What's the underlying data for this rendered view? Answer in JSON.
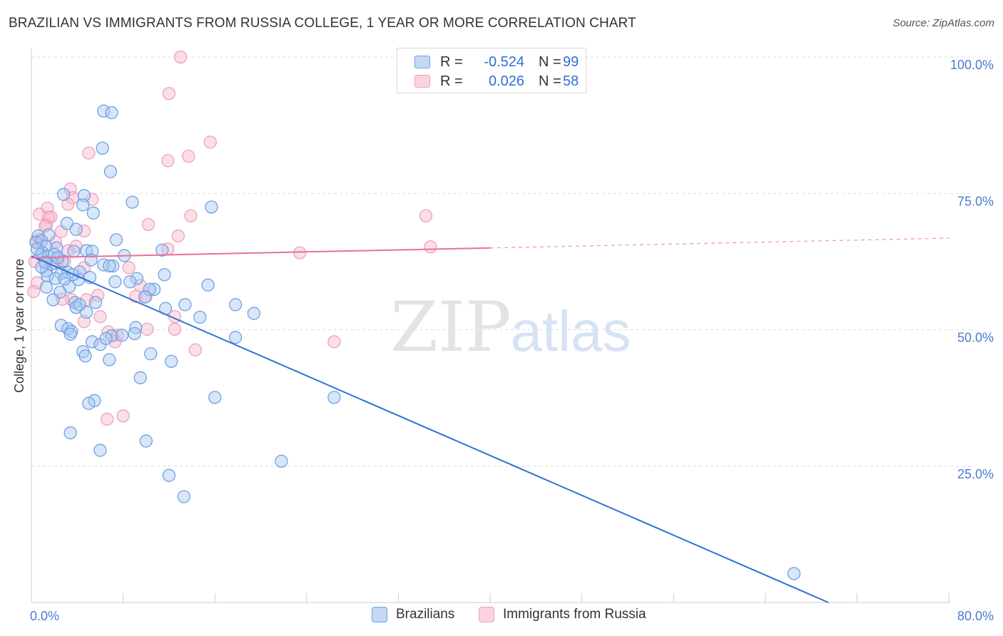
{
  "header": {
    "title": "BRAZILIAN VS IMMIGRANTS FROM RUSSIA COLLEGE, 1 YEAR OR MORE CORRELATION CHART",
    "source": "Source: ZipAtlas.com"
  },
  "legend": {
    "rows": [
      {
        "r_label": "R =",
        "r_value": "-0.524",
        "n_label": "N =",
        "n_value": "99",
        "color": "#6fa1e6"
      },
      {
        "r_label": "R =",
        "r_value": "0.026",
        "n_label": "N =",
        "n_value": "58",
        "color": "#f0a0bb"
      }
    ]
  },
  "bottom_legend": {
    "items": [
      {
        "label": "Brazilians",
        "color": "#6fa1e6"
      },
      {
        "label": "Immigrants from Russia",
        "color": "#f0a0bb"
      }
    ]
  },
  "watermark": {
    "zip": "ZIP",
    "atlas": "atlas"
  },
  "chart_data": {
    "type": "scatter",
    "title": "BRAZILIAN VS IMMIGRANTS FROM RUSSIA COLLEGE, 1 YEAR OR MORE CORRELATION CHART",
    "xlabel": "",
    "ylabel": "College, 1 year or more",
    "xlim": [
      0,
      80
    ],
    "ylim": [
      0,
      100
    ],
    "x_tick_labels": [
      "0.0%",
      "80.0%"
    ],
    "y_tick_labels": [
      {
        "value": 100,
        "label": "100.0%"
      },
      {
        "value": 75,
        "label": "75.0%"
      },
      {
        "value": 50,
        "label": "50.0%"
      },
      {
        "value": 25,
        "label": "25.0%"
      }
    ],
    "grid": true,
    "colors": {
      "brazilians": "#6fa1e6",
      "russia": "#f0a0bb",
      "brazilians_line": "#2f72d4",
      "russia_line": "#e8709a"
    },
    "series": [
      {
        "name": "Brazilians",
        "trend": {
          "x0": 0,
          "y0": 63.5,
          "x1": 69.5,
          "y1": 0
        },
        "points": [
          [
            6.3,
            90.1
          ],
          [
            7.0,
            89.8
          ],
          [
            6.2,
            83.3
          ],
          [
            6.9,
            79.0
          ],
          [
            2.8,
            74.8
          ],
          [
            4.6,
            74.6
          ],
          [
            4.5,
            72.9
          ],
          [
            8.8,
            73.4
          ],
          [
            15.7,
            72.5
          ],
          [
            5.4,
            71.4
          ],
          [
            3.1,
            69.5
          ],
          [
            3.9,
            68.4
          ],
          [
            0.6,
            67.2
          ],
          [
            1.5,
            67.4
          ],
          [
            7.4,
            66.5
          ],
          [
            0.4,
            66.0
          ],
          [
            0.9,
            66.3
          ],
          [
            1.3,
            65.3
          ],
          [
            2.2,
            65.0
          ],
          [
            3.7,
            64.4
          ],
          [
            1.0,
            64.1
          ],
          [
            4.8,
            64.5
          ],
          [
            5.3,
            64.4
          ],
          [
            11.4,
            64.6
          ],
          [
            0.8,
            63.8
          ],
          [
            1.5,
            63.5
          ],
          [
            2.0,
            63.8
          ],
          [
            8.1,
            63.6
          ],
          [
            2.7,
            62.6
          ],
          [
            5.2,
            62.8
          ],
          [
            1.8,
            62.1
          ],
          [
            6.3,
            61.9
          ],
          [
            7.1,
            61.7
          ],
          [
            6.8,
            61.7
          ],
          [
            1.3,
            60.8
          ],
          [
            2.6,
            60.3
          ],
          [
            3.2,
            60.5
          ],
          [
            4.2,
            60.6
          ],
          [
            11.6,
            60.1
          ],
          [
            1.4,
            59.9
          ],
          [
            2.1,
            59.4
          ],
          [
            4.1,
            59.2
          ],
          [
            5.1,
            59.6
          ],
          [
            9.2,
            59.4
          ],
          [
            8.6,
            58.8
          ],
          [
            7.3,
            58.8
          ],
          [
            15.4,
            58.2
          ],
          [
            1.3,
            57.8
          ],
          [
            3.3,
            57.9
          ],
          [
            10.7,
            57.4
          ],
          [
            10.3,
            57.4
          ],
          [
            9.9,
            56.0
          ],
          [
            2.5,
            56.9
          ],
          [
            1.9,
            55.5
          ],
          [
            3.8,
            55.0
          ],
          [
            5.6,
            55.0
          ],
          [
            13.4,
            54.6
          ],
          [
            17.8,
            54.6
          ],
          [
            3.9,
            54.1
          ],
          [
            11.7,
            53.9
          ],
          [
            4.8,
            53.2
          ],
          [
            19.4,
            53.0
          ],
          [
            14.7,
            52.3
          ],
          [
            2.6,
            50.8
          ],
          [
            3.2,
            50.2
          ],
          [
            9.1,
            50.4
          ],
          [
            3.5,
            49.7
          ],
          [
            3.4,
            49.2
          ],
          [
            9.0,
            49.3
          ],
          [
            7.0,
            48.9
          ],
          [
            7.9,
            49.0
          ],
          [
            17.8,
            48.6
          ],
          [
            5.3,
            47.8
          ],
          [
            6.0,
            47.3
          ],
          [
            4.5,
            46.0
          ],
          [
            10.4,
            45.6
          ],
          [
            4.7,
            45.2
          ],
          [
            6.8,
            44.5
          ],
          [
            12.2,
            44.2
          ],
          [
            9.5,
            41.2
          ],
          [
            16.0,
            37.6
          ],
          [
            5.5,
            37.0
          ],
          [
            5.0,
            36.5
          ],
          [
            26.4,
            37.6
          ],
          [
            3.4,
            31.1
          ],
          [
            10.0,
            29.6
          ],
          [
            6.0,
            27.9
          ],
          [
            21.8,
            25.9
          ],
          [
            12.0,
            23.3
          ],
          [
            13.3,
            19.4
          ],
          [
            66.5,
            5.3
          ],
          [
            0.9,
            61.5
          ],
          [
            2.3,
            63.2
          ],
          [
            0.5,
            64.8
          ],
          [
            3.6,
            60.1
          ],
          [
            1.2,
            62.4
          ],
          [
            6.5,
            48.4
          ],
          [
            4.2,
            54.6
          ],
          [
            2.9,
            59.3
          ]
        ]
      },
      {
        "name": "Immigrants from Russia",
        "trend": {
          "x0": 0,
          "y0": 63.2,
          "x1": 80,
          "y1": 66.8,
          "solid_until": 40
        },
        "points": [
          [
            13.0,
            100.0
          ],
          [
            12.0,
            93.3
          ],
          [
            15.6,
            84.4
          ],
          [
            5.0,
            82.4
          ],
          [
            13.7,
            81.8
          ],
          [
            11.9,
            81.0
          ],
          [
            3.4,
            75.8
          ],
          [
            3.6,
            74.2
          ],
          [
            5.3,
            73.9
          ],
          [
            3.2,
            73.0
          ],
          [
            1.4,
            72.3
          ],
          [
            0.7,
            71.2
          ],
          [
            1.7,
            70.7
          ],
          [
            1.5,
            70.6
          ],
          [
            13.9,
            70.9
          ],
          [
            34.4,
            70.9
          ],
          [
            10.2,
            69.3
          ],
          [
            1.3,
            69.2
          ],
          [
            1.2,
            69.0
          ],
          [
            2.6,
            68.0
          ],
          [
            4.6,
            68.1
          ],
          [
            12.8,
            67.2
          ],
          [
            0.7,
            66.6
          ],
          [
            0.4,
            66.2
          ],
          [
            2.1,
            66.1
          ],
          [
            3.9,
            65.3
          ],
          [
            11.9,
            64.8
          ],
          [
            34.8,
            65.2
          ],
          [
            23.4,
            64.1
          ],
          [
            3.2,
            64.5
          ],
          [
            0.3,
            62.5
          ],
          [
            2.3,
            62.5
          ],
          [
            1.3,
            62.5
          ],
          [
            2.9,
            62.6
          ],
          [
            2.0,
            62.2
          ],
          [
            4.6,
            61.4
          ],
          [
            8.5,
            61.4
          ],
          [
            0.5,
            58.6
          ],
          [
            9.5,
            58.1
          ],
          [
            10.0,
            56.1
          ],
          [
            9.1,
            56.1
          ],
          [
            5.8,
            56.3
          ],
          [
            4.8,
            55.5
          ],
          [
            3.5,
            55.5
          ],
          [
            6.0,
            52.4
          ],
          [
            12.5,
            52.4
          ],
          [
            4.6,
            51.5
          ],
          [
            10.1,
            50.1
          ],
          [
            12.5,
            50.1
          ],
          [
            6.7,
            49.6
          ],
          [
            7.5,
            49.0
          ],
          [
            7.3,
            47.8
          ],
          [
            26.4,
            47.8
          ],
          [
            14.3,
            46.3
          ],
          [
            8.0,
            34.2
          ],
          [
            6.6,
            33.6
          ],
          [
            0.2,
            57.0
          ],
          [
            2.7,
            55.6
          ]
        ]
      }
    ]
  }
}
